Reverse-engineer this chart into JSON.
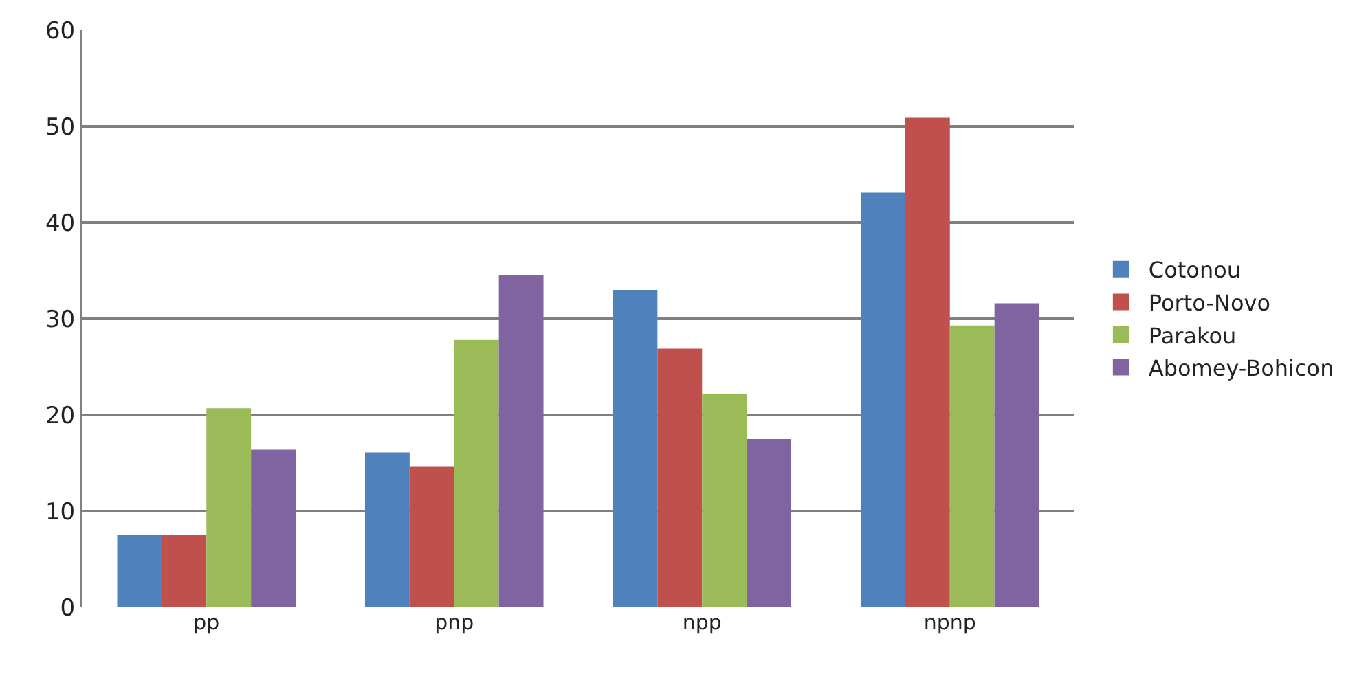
{
  "chart_data": {
    "type": "bar",
    "categories": [
      "pp",
      "pnp",
      "npp",
      "npnp"
    ],
    "series": [
      {
        "name": "Cotonou",
        "color": "#4f81bd",
        "values": [
          7.5,
          16.1,
          33.0,
          43.1
        ]
      },
      {
        "name": "Porto-Novo",
        "color": "#c0504d",
        "values": [
          7.5,
          14.6,
          26.9,
          50.9
        ]
      },
      {
        "name": "Parakou",
        "color": "#9bbb59",
        "values": [
          20.7,
          27.8,
          22.2,
          29.3
        ]
      },
      {
        "name": "Abomey-Bohicon",
        "color": "#8064a2",
        "values": [
          16.4,
          34.5,
          17.5,
          31.6
        ]
      }
    ],
    "ylim": [
      0,
      60
    ],
    "yticks": [
      0,
      10,
      20,
      30,
      40,
      50,
      60
    ],
    "grid": "y",
    "legend": "right"
  }
}
